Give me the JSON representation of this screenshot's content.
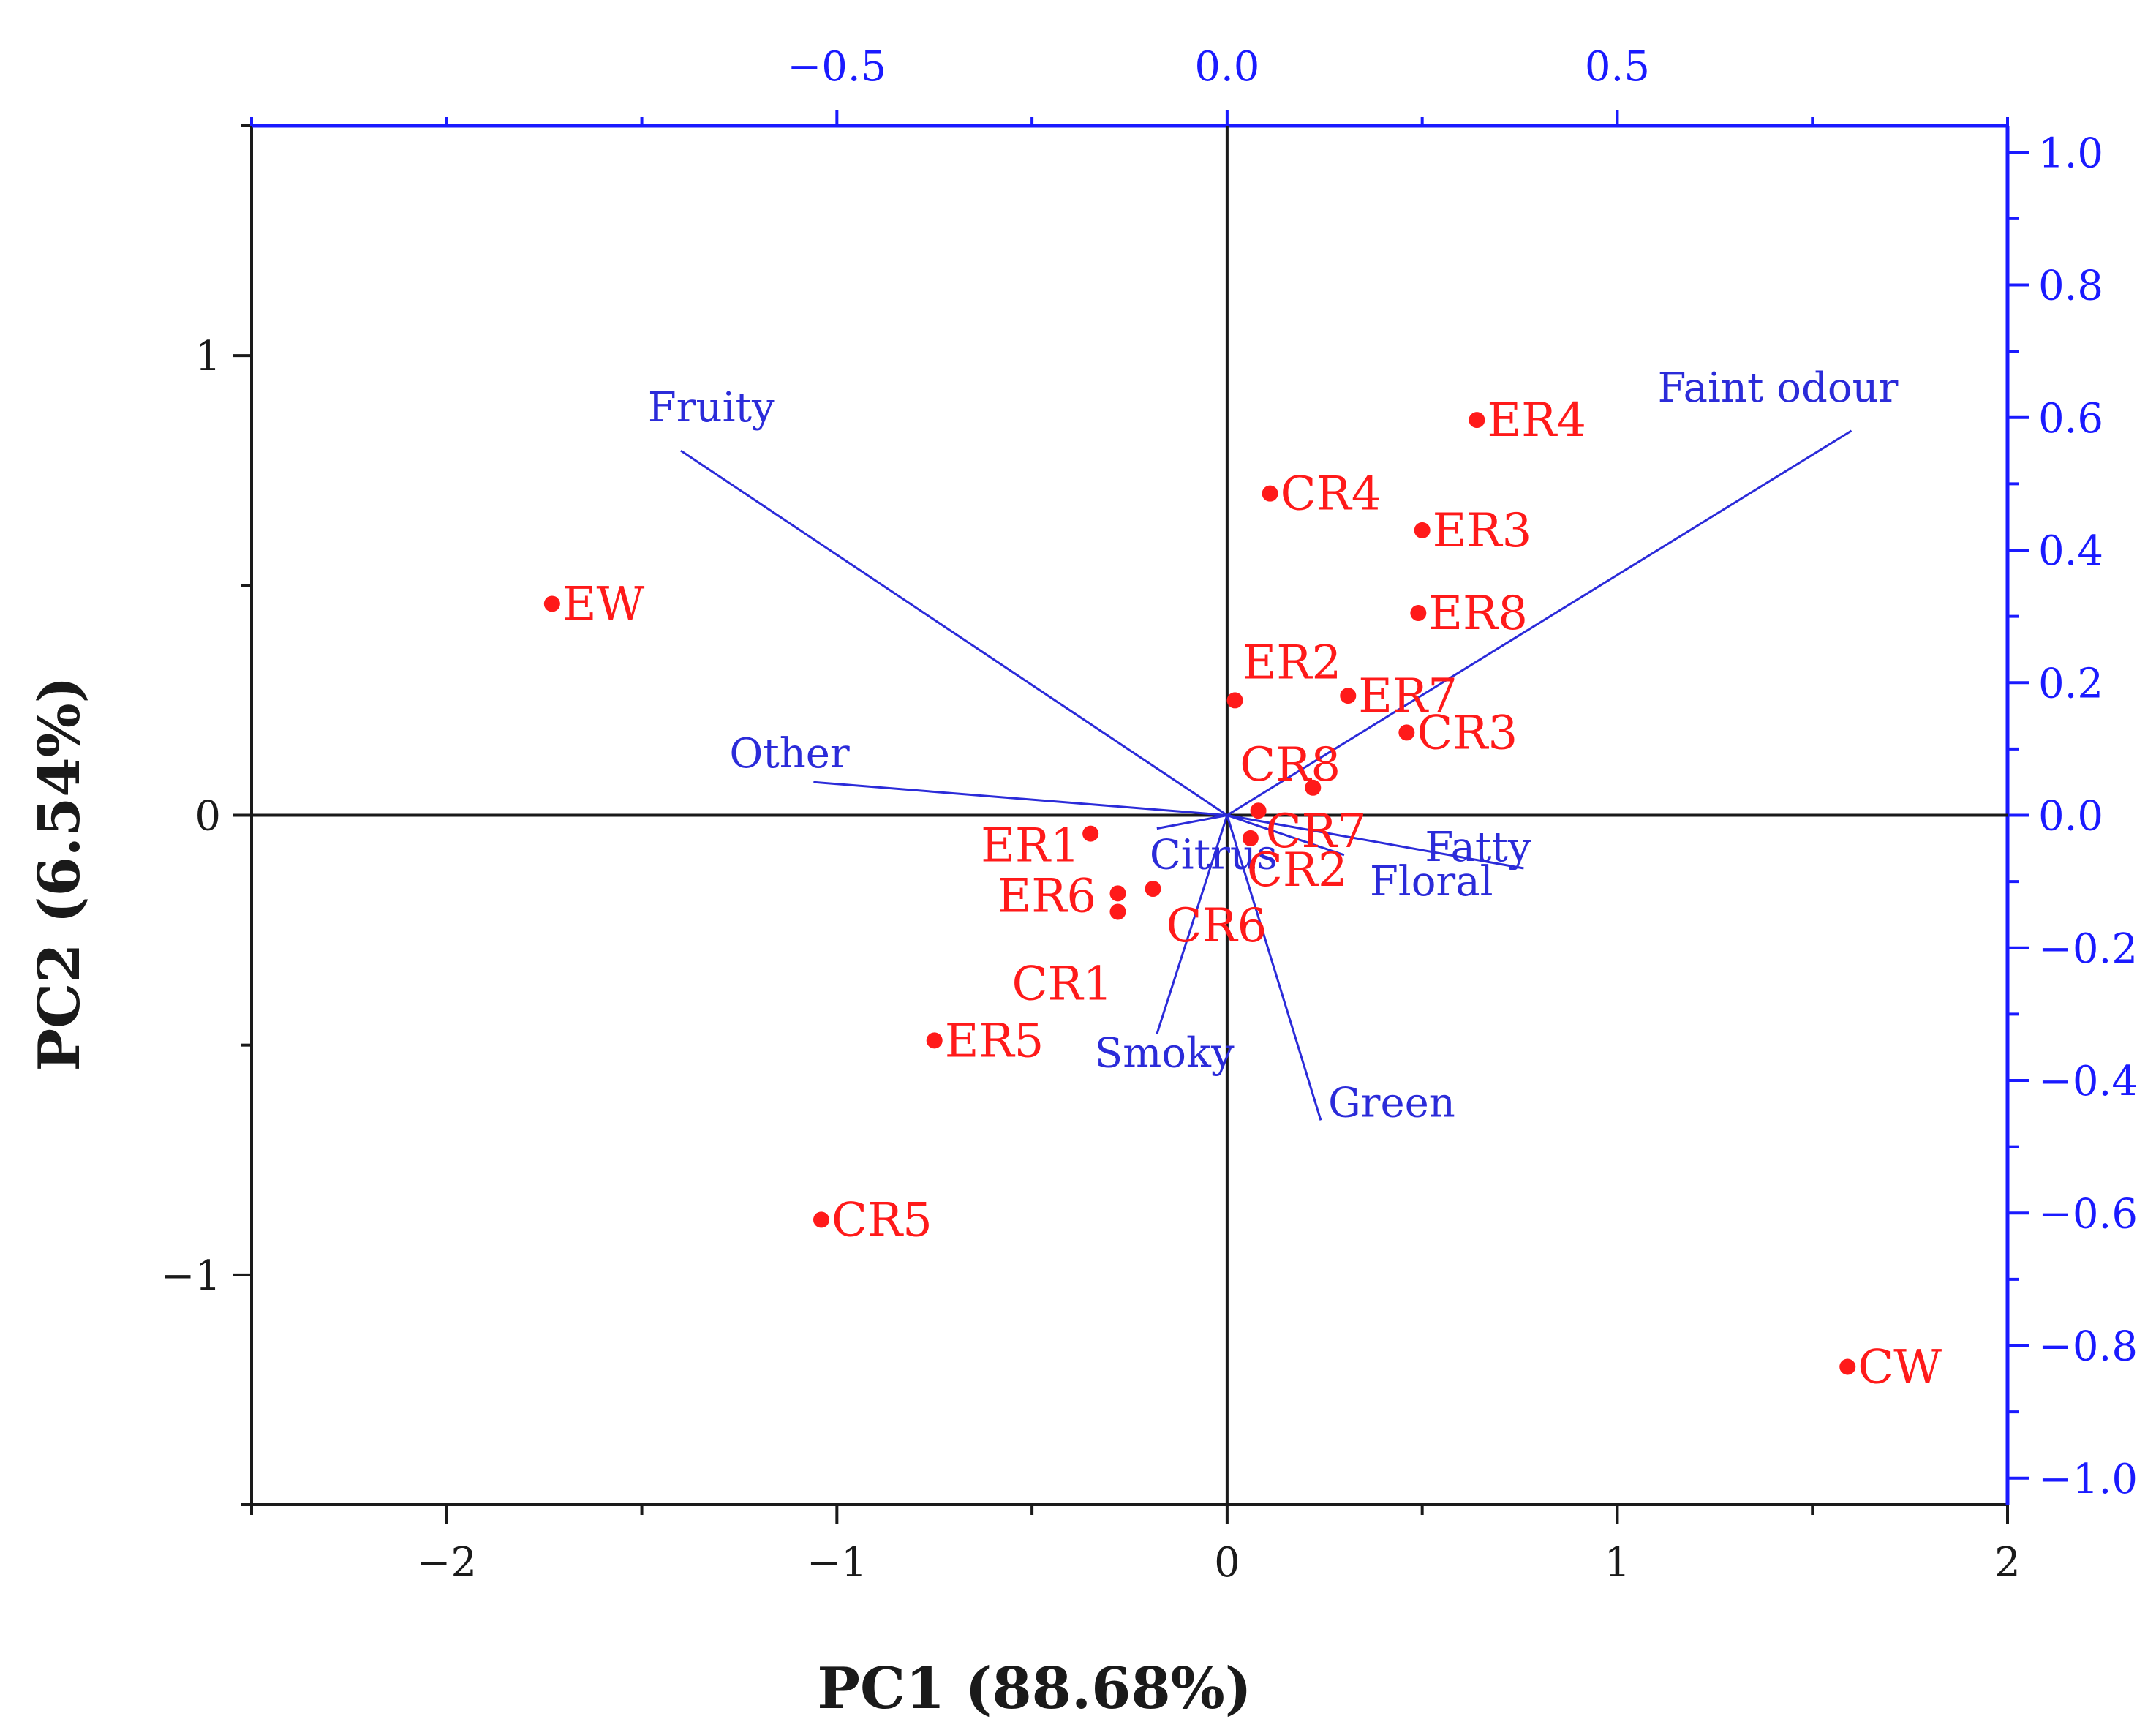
{
  "chart_data": {
    "type": "scatter",
    "subtype": "biplot",
    "xlabel": "PC1 (88.68%)",
    "ylabel": "PC2 (6.54%)",
    "xlim": [
      -2.5,
      2.0
    ],
    "ylim": [
      -1.5,
      1.5
    ],
    "x_ticks": [
      -2,
      -1,
      0,
      1,
      2
    ],
    "y_ticks": [
      -1,
      0,
      1
    ],
    "x_tick_labels": [
      "−2",
      "−1",
      "0",
      "1",
      "2"
    ],
    "y_tick_labels": [
      "−1",
      "0",
      "1"
    ],
    "loading_xlim": [
      -1.25,
      1.0
    ],
    "loading_ylim": [
      -1.04,
      1.04
    ],
    "loading_x_ticks": [
      -0.5,
      0.0,
      0.5
    ],
    "loading_x_tick_labels": [
      "−0.5",
      "0.0",
      "0.5"
    ],
    "loading_y_ticks": [
      -1.0,
      -0.8,
      -0.6,
      -0.4,
      -0.2,
      0.0,
      0.2,
      0.4,
      0.6,
      0.8,
      1.0
    ],
    "loading_y_tick_labels": [
      "−1.0",
      "−0.8",
      "−0.6",
      "−0.4",
      "−0.2",
      "0.0",
      "0.2",
      "0.4",
      "0.6",
      "0.8",
      "1.0"
    ],
    "scores": [
      {
        "label": "EW",
        "x": -1.73,
        "y": 0.46
      },
      {
        "label": "ER4",
        "x": 0.64,
        "y": 0.86
      },
      {
        "label": "CR4",
        "x": 0.11,
        "y": 0.7
      },
      {
        "label": "ER3",
        "x": 0.5,
        "y": 0.62
      },
      {
        "label": "ER8",
        "x": 0.49,
        "y": 0.44
      },
      {
        "label": "ER2",
        "x": 0.02,
        "y": 0.25
      },
      {
        "label": "ER7",
        "x": 0.31,
        "y": 0.26
      },
      {
        "label": "CR3",
        "x": 0.46,
        "y": 0.18
      },
      {
        "label": "CR8",
        "x": 0.22,
        "y": 0.06
      },
      {
        "label": "CR7",
        "x": 0.08,
        "y": 0.01
      },
      {
        "label": "CR2",
        "x": 0.06,
        "y": -0.05
      },
      {
        "label": "ER1",
        "x": -0.35,
        "y": -0.04
      },
      {
        "label": "ER6",
        "x": -0.28,
        "y": -0.17
      },
      {
        "label": "CR6",
        "x": -0.19,
        "y": -0.16
      },
      {
        "label": "CR1",
        "x": -0.28,
        "y": -0.21
      },
      {
        "label": "ER5",
        "x": -0.75,
        "y": -0.49
      },
      {
        "label": "CR5",
        "x": -1.04,
        "y": -0.88
      },
      {
        "label": "CW",
        "x": 1.59,
        "y": -1.2
      }
    ],
    "loadings": [
      {
        "label": "Fruity",
        "x": -0.7,
        "y": 0.55
      },
      {
        "label": "Faint odour",
        "x": 0.8,
        "y": 0.58
      },
      {
        "label": "Other",
        "x": -0.53,
        "y": 0.05
      },
      {
        "label": "Citrus",
        "x": -0.09,
        "y": -0.02
      },
      {
        "label": "Fatty",
        "x": 0.38,
        "y": -0.08
      },
      {
        "label": "Floral",
        "x": 0.15,
        "y": -0.06
      },
      {
        "label": "Smoky",
        "x": -0.09,
        "y": -0.33
      },
      {
        "label": "Green",
        "x": 0.12,
        "y": -0.46
      }
    ],
    "colors": {
      "scores": "#ff1a1a",
      "loadings": "#2b2bd9",
      "loading_axis": "#1a1aff",
      "axis": "#1a1a1a"
    }
  }
}
